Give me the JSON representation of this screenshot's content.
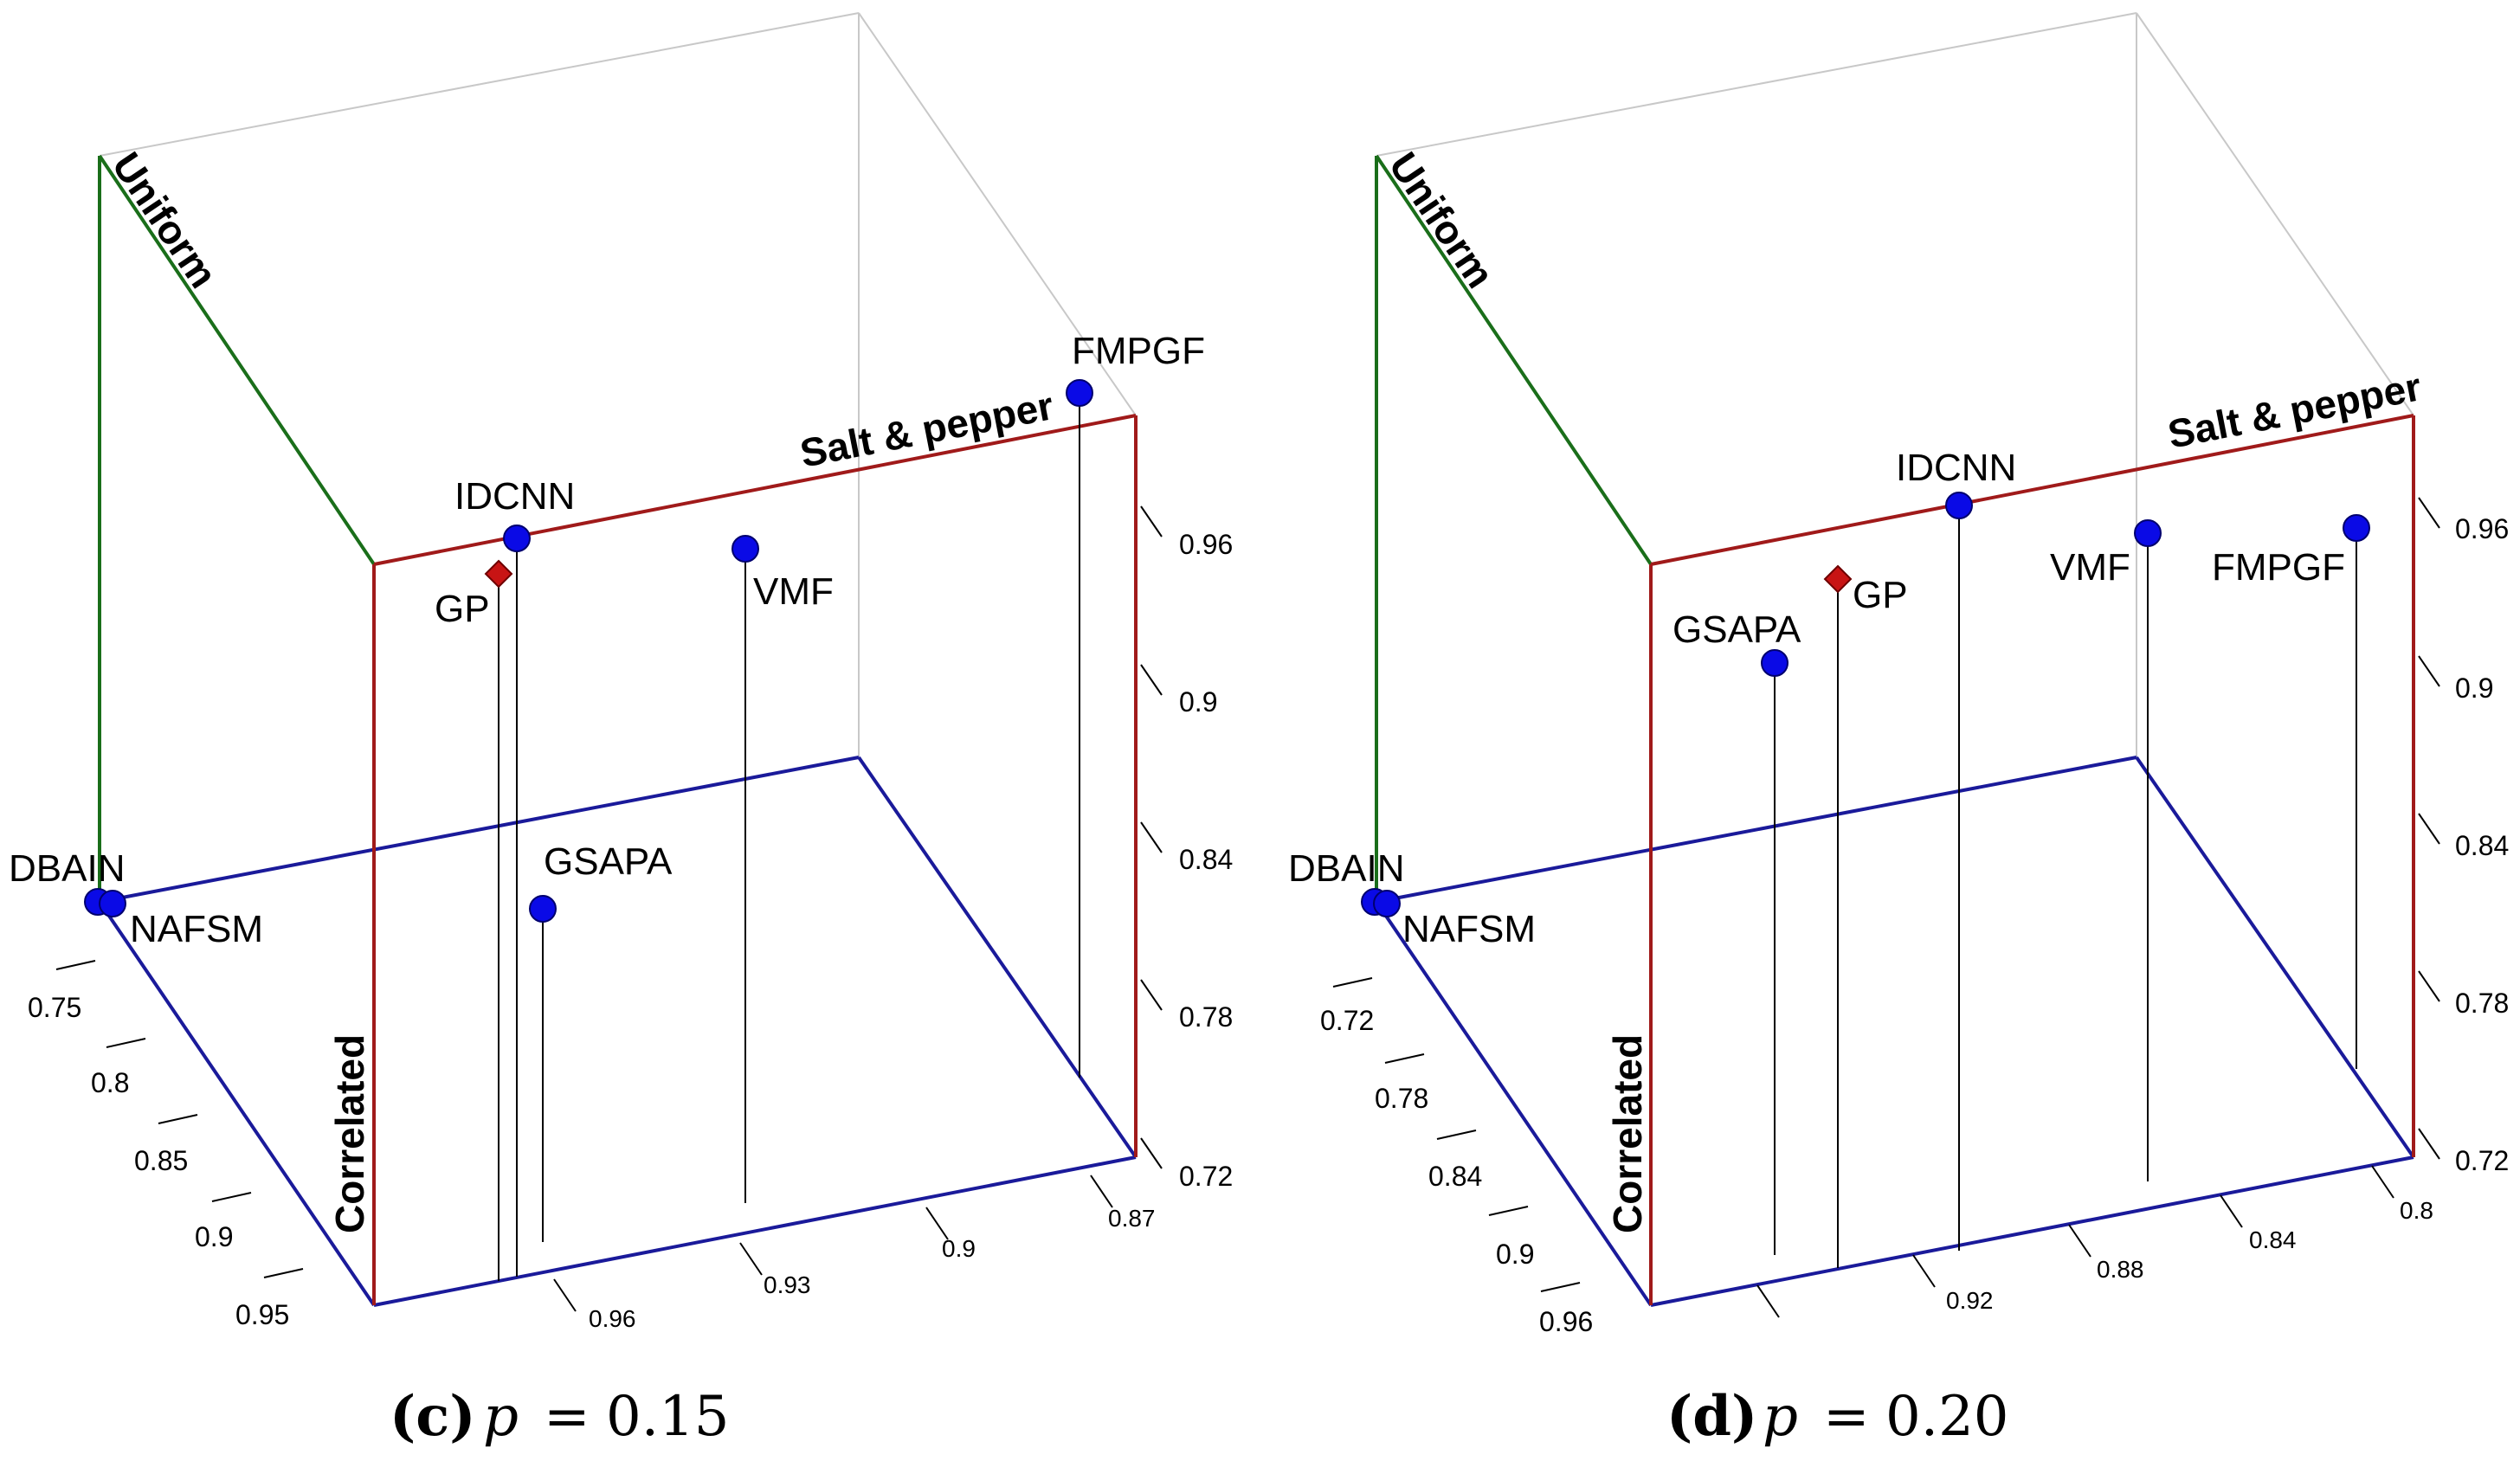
{
  "chart_data": [
    {
      "type": "scatter",
      "subtitle_label": "(c)",
      "subtitle_var": "p",
      "subtitle_eq": "=",
      "subtitle_value": "0.15",
      "axes": {
        "uniform": "Uniform",
        "salt_pepper": "Salt & pepper",
        "correlated": "Correlated"
      },
      "ticks_vertical": [
        "0.96",
        "0.9",
        "0.84",
        "0.78",
        "0.72"
      ],
      "ticks_correlated": [
        "0.75",
        "0.8",
        "0.85",
        "0.9",
        "0.95"
      ],
      "ticks_salt": [
        "0.96",
        "0.93",
        "0.9",
        "0.87"
      ],
      "points": [
        {
          "name": "DBAIN",
          "marker": "circle"
        },
        {
          "name": "NAFSM",
          "marker": "circle"
        },
        {
          "name": "IDCNN",
          "marker": "circle"
        },
        {
          "name": "GP",
          "marker": "diamond"
        },
        {
          "name": "VMF",
          "marker": "circle"
        },
        {
          "name": "FMPGF",
          "marker": "circle"
        },
        {
          "name": "GSAPA",
          "marker": "circle"
        }
      ]
    },
    {
      "type": "scatter",
      "subtitle_label": "(d)",
      "subtitle_var": "p",
      "subtitle_eq": "=",
      "subtitle_value": "0.20",
      "axes": {
        "uniform": "Uniform",
        "salt_pepper": "Salt & pepper",
        "correlated": "Correlated"
      },
      "ticks_vertical": [
        "0.96",
        "0.9",
        "0.84",
        "0.78",
        "0.72"
      ],
      "ticks_correlated": [
        "0.72",
        "0.78",
        "0.84",
        "0.9",
        "0.96"
      ],
      "ticks_salt": [
        "0.92",
        "0.88",
        "0.84",
        "0.8"
      ],
      "points": [
        {
          "name": "DBAIN",
          "marker": "circle"
        },
        {
          "name": "NAFSM",
          "marker": "circle"
        },
        {
          "name": "GSAPA",
          "marker": "circle"
        },
        {
          "name": "GP",
          "marker": "diamond"
        },
        {
          "name": "IDCNN",
          "marker": "circle"
        },
        {
          "name": "VMF",
          "marker": "circle"
        },
        {
          "name": "FMPGF",
          "marker": "circle"
        }
      ]
    }
  ],
  "colors": {
    "uniform_axis": "#1a6e1a",
    "salt_axis": "#a01a1a",
    "correlated_axis": "#1a1a9a",
    "box_gray": "#c8c8c8",
    "point_blue": "#0a0ae6",
    "point_red": "#c81414"
  }
}
